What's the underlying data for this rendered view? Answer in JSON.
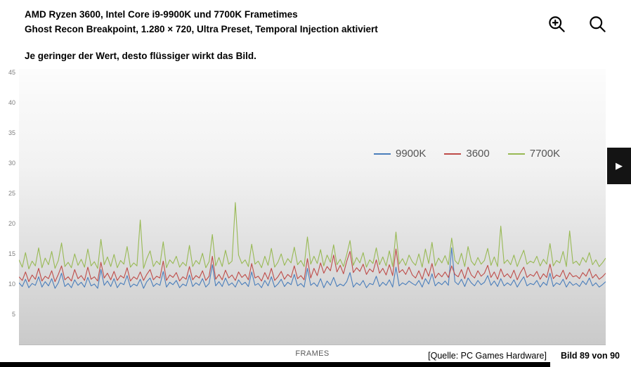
{
  "header": {
    "title_line1": "AMD Ryzen 3600, Intel Core i9-9900K und 7700K Frametimes",
    "title_line2": "Ghost Recon Breakpoint, 1.280 × 720, Ultra Preset, Temporal Injection aktiviert",
    "subtitle": "Je geringer der Wert, desto flüssiger wirkt das Bild."
  },
  "toolbar": {
    "zoom_in_icon": "zoom-in-magnifier",
    "search_icon": "search-magnifier"
  },
  "viewer": {
    "next_arrow": "▶",
    "caption_source": "[Quelle: PC Games Hardware]",
    "caption_counter": "Bild 89 von 90"
  },
  "chart_data": {
    "type": "line",
    "title": "AMD Ryzen 3600, Intel Core i9-9900K und 7700K Frametimes",
    "subtitle": "Ghost Recon Breakpoint, 1.280 × 720, Ultra Preset, Temporal Injection aktiviert",
    "xlabel": "FRAMES",
    "ylabel": "",
    "ylim": [
      0,
      45.6
    ],
    "yticks": [
      5,
      10,
      15,
      20,
      25,
      30,
      35,
      40,
      45
    ],
    "grid": false,
    "legend_position": "top-right-inside",
    "series": [
      {
        "name": "9900K",
        "color": "#4a7ebb",
        "values": [
          10.2,
          9.6,
          10.8,
          9.4,
          10.1,
          9.8,
          11.2,
          9.5,
          10.4,
          9.7,
          10.9,
          9.3,
          10.2,
          11.8,
          9.6,
          10.1,
          9.4,
          10.7,
          9.8,
          10.3,
          9.5,
          11.1,
          9.7,
          10.0,
          9.3,
          12.4,
          9.8,
          10.5,
          9.6,
          10.9,
          9.4,
          10.2,
          9.9,
          11.4,
          9.5,
          10.0,
          9.7,
          10.8,
          9.3,
          10.4,
          11.0,
          9.6,
          10.1,
          9.8,
          12.1,
          9.5,
          10.3,
          9.9,
          10.6,
          9.4,
          10.0,
          9.7,
          11.5,
          9.6,
          10.2,
          9.8,
          10.9,
          9.5,
          10.1,
          13.2,
          9.7,
          10.4,
          9.6,
          11.0,
          9.8,
          10.2,
          9.5,
          10.7,
          9.9,
          10.3,
          9.6,
          12.0,
          9.8,
          10.1,
          9.4,
          10.6,
          9.7,
          11.2,
          9.5,
          10.0,
          10.8,
          9.6,
          10.3,
          9.9,
          11.6,
          9.7,
          10.1,
          9.5,
          12.6,
          9.8,
          10.2,
          9.6,
          10.9,
          9.4,
          10.5,
          9.8,
          11.1,
          9.6,
          10.0,
          9.7,
          10.4,
          11.9,
          9.5,
          10.2,
          9.8,
          10.6,
          9.4,
          10.1,
          9.9,
          11.3,
          9.6,
          10.3,
          9.8,
          10.7,
          9.5,
          12.8,
          9.7,
          10.2,
          9.9,
          10.5,
          10.1,
          9.8,
          10.6,
          9.5,
          10.9,
          10.0,
          11.7,
          9.7,
          10.3,
          9.9,
          10.5,
          9.8,
          16.0,
          10.4,
          9.9,
          10.8,
          9.6,
          11.0,
          10.2,
          9.7,
          10.6,
          9.9,
          10.3,
          11.4,
          9.8,
          10.5,
          9.6,
          10.9,
          9.7,
          10.2,
          9.8,
          10.7,
          9.5,
          10.4,
          11.2,
          9.7,
          10.1,
          9.9,
          10.6,
          9.5,
          10.3,
          9.8,
          11.8,
          9.6,
          10.2,
          9.9,
          10.8,
          9.5,
          10.4,
          9.8,
          10.1,
          9.6,
          10.5,
          9.9,
          11.0,
          9.7,
          10.2,
          9.5,
          9.9,
          10.4
        ]
      },
      {
        "name": "3600",
        "color": "#be4b48",
        "values": [
          11.2,
          10.6,
          12.0,
          10.4,
          11.5,
          10.8,
          12.6,
          10.5,
          11.3,
          10.9,
          12.2,
          10.4,
          11.6,
          13.0,
          10.7,
          11.2,
          10.5,
          12.4,
          10.9,
          11.4,
          10.6,
          12.8,
          10.8,
          11.2,
          10.5,
          13.6,
          11.0,
          11.8,
          10.7,
          12.1,
          10.6,
          11.4,
          11.0,
          12.7,
          10.5,
          11.2,
          10.8,
          12.0,
          10.6,
          11.6,
          12.4,
          10.7,
          11.3,
          11.0,
          13.8,
          10.6,
          11.5,
          11.1,
          11.9,
          10.5,
          11.2,
          10.8,
          12.9,
          10.7,
          11.4,
          11.0,
          12.2,
          10.6,
          11.3,
          14.6,
          10.8,
          11.6,
          10.7,
          12.3,
          11.0,
          11.5,
          10.6,
          12.0,
          11.1,
          11.6,
          10.7,
          13.4,
          11.0,
          11.3,
          10.5,
          11.9,
          10.8,
          12.6,
          10.6,
          11.2,
          12.1,
          10.8,
          11.6,
          11.1,
          13.0,
          10.9,
          11.4,
          10.7,
          14.2,
          11.0,
          12.6,
          11.4,
          13.5,
          11.8,
          12.9,
          12.2,
          14.8,
          12.0,
          13.1,
          11.7,
          13.8,
          15.4,
          11.9,
          12.7,
          12.1,
          13.3,
          11.6,
          12.5,
          12.0,
          14.0,
          11.8,
          12.6,
          11.5,
          13.2,
          11.4,
          15.8,
          11.9,
          12.4,
          11.6,
          12.8,
          11.5,
          11.0,
          12.2,
          10.8,
          12.6,
          11.3,
          13.4,
          11.0,
          11.8,
          11.2,
          12.0,
          11.1,
          13.0,
          11.6,
          11.2,
          12.4,
          10.9,
          12.8,
          11.5,
          11.0,
          12.2,
          11.3,
          11.8,
          13.1,
          11.1,
          12.0,
          10.8,
          12.5,
          11.2,
          11.7,
          11.0,
          12.3,
          10.7,
          11.9,
          12.8,
          11.1,
          11.6,
          11.3,
          12.1,
          10.8,
          11.7,
          11.1,
          13.3,
          10.9,
          11.5,
          11.2,
          12.3,
          10.8,
          11.9,
          11.2,
          11.4,
          10.9,
          11.9,
          11.3,
          12.5,
          11.0,
          11.6,
          10.8,
          11.2,
          11.8
        ]
      },
      {
        "name": "7700K",
        "color": "#98b954",
        "values": [
          14.0,
          12.8,
          15.2,
          12.5,
          13.8,
          13.0,
          16.0,
          12.7,
          14.3,
          13.2,
          15.4,
          12.6,
          13.9,
          16.8,
          12.9,
          13.6,
          12.7,
          15.0,
          13.1,
          14.1,
          12.8,
          15.8,
          13.0,
          13.7,
          12.6,
          17.4,
          13.2,
          14.5,
          12.9,
          14.9,
          12.7,
          13.9,
          13.3,
          16.2,
          12.8,
          13.5,
          13.0,
          20.6,
          12.6,
          14.2,
          15.5,
          12.9,
          13.8,
          13.2,
          17.0,
          12.7,
          14.0,
          13.4,
          14.6,
          12.8,
          13.6,
          13.0,
          16.4,
          12.9,
          13.9,
          13.3,
          15.1,
          12.7,
          13.7,
          18.2,
          13.0,
          14.4,
          12.9,
          15.6,
          13.3,
          13.8,
          23.5,
          14.8,
          13.4,
          14.0,
          12.9,
          16.6,
          13.3,
          13.8,
          12.7,
          14.6,
          13.1,
          15.9,
          12.8,
          13.6,
          15.0,
          13.1,
          14.2,
          13.5,
          16.1,
          13.2,
          13.9,
          12.9,
          17.8,
          13.3,
          14.6,
          13.4,
          15.7,
          13.0,
          14.8,
          13.6,
          16.5,
          13.2,
          14.1,
          12.9,
          14.9,
          17.2,
          13.1,
          14.4,
          13.5,
          15.2,
          12.8,
          14.0,
          13.4,
          16.0,
          13.2,
          14.5,
          13.0,
          15.5,
          12.9,
          18.6,
          13.3,
          14.2,
          13.1,
          14.8,
          13.7,
          13.1,
          15.0,
          12.8,
          15.8,
          13.4,
          16.9,
          13.0,
          14.3,
          13.5,
          14.7,
          13.2,
          17.6,
          13.9,
          13.3,
          15.1,
          12.9,
          16.2,
          13.8,
          13.1,
          14.4,
          13.3,
          13.9,
          15.9,
          13.1,
          14.5,
          12.9,
          19.6,
          13.4,
          14.0,
          13.2,
          14.8,
          12.9,
          14.3,
          15.6,
          13.3,
          13.8,
          13.5,
          14.6,
          13.0,
          14.1,
          13.3,
          16.7,
          13.0,
          13.9,
          13.5,
          15.4,
          12.9,
          18.8,
          13.4,
          13.8,
          13.1,
          14.4,
          13.6,
          15.2,
          13.2,
          14.0,
          12.9,
          13.5,
          14.3
        ]
      }
    ]
  }
}
